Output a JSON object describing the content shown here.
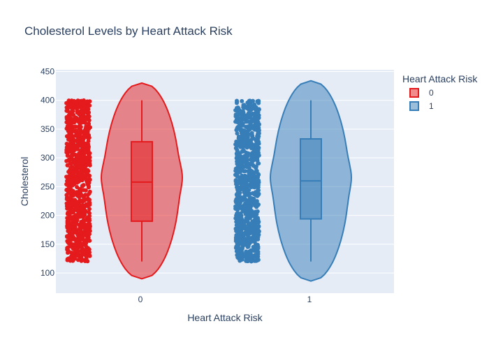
{
  "chart_data": {
    "type": "violin",
    "title": "Cholesterol Levels by Heart Attack Risk",
    "xlabel": "Heart Attack Risk",
    "ylabel": "Cholesterol",
    "categories": [
      "0",
      "1"
    ],
    "ylim": [
      65,
      453
    ],
    "yticks": [
      100,
      150,
      200,
      250,
      300,
      350,
      400,
      450
    ],
    "grid": true,
    "legend": {
      "title": "Heart Attack Risk",
      "position": "top-right"
    },
    "series": [
      {
        "name": "0",
        "color": "#e41a1c",
        "points_range": [
          120,
          400
        ],
        "box": {
          "min": 120,
          "q1": 190,
          "median": 258,
          "q3": 328,
          "max": 400
        },
        "violin_range": [
          90,
          430
        ]
      },
      {
        "name": "1",
        "color": "#377eb8",
        "points_range": [
          120,
          400
        ],
        "box": {
          "min": 120,
          "q1": 194,
          "median": 260,
          "q3": 333,
          "max": 400
        },
        "violin_range": [
          86,
          434
        ]
      }
    ]
  }
}
